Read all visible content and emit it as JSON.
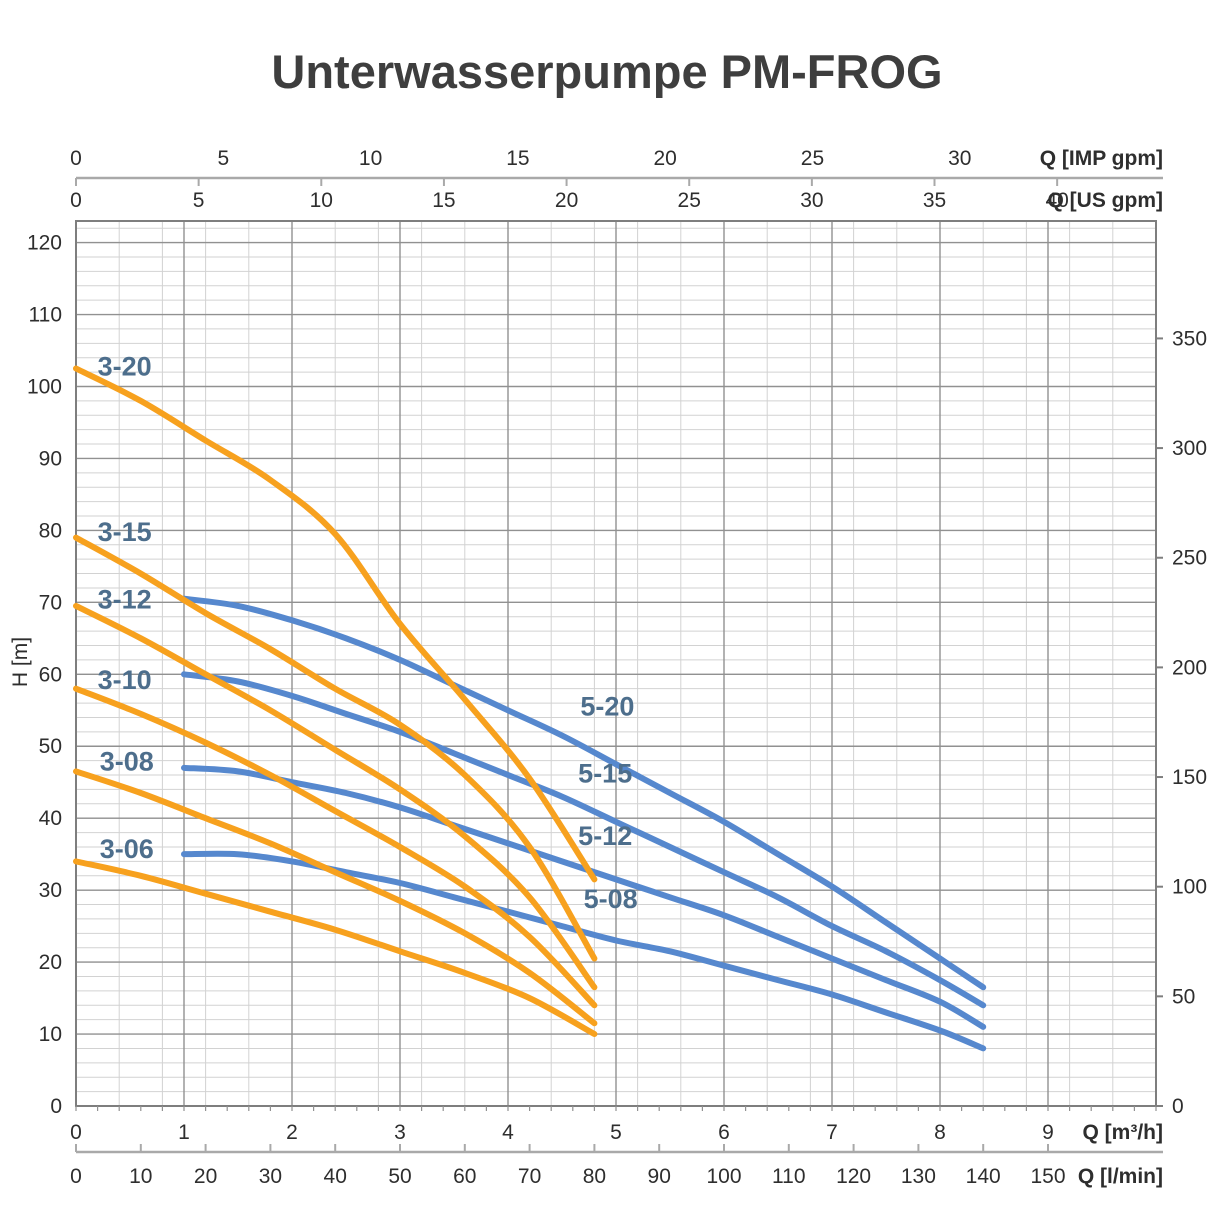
{
  "title": "Unterwasserpumpe PM-FROG",
  "colors": {
    "orange_series": "#F7A11E",
    "blue_series": "#5688CE",
    "curve_label": "#4D6E8C",
    "title_text": "#3E3E3E",
    "tick_text": "#2E2E2E",
    "axis_line": "#A9A9A9",
    "grid_minor": "#D2D2D2",
    "grid_major": "#919191",
    "plot_border": "#7E7E7E"
  },
  "chart_data": {
    "type": "line",
    "title": "Unterwasserpumpe PM-FROG",
    "grid": true,
    "legend": "none (inline curve labels)",
    "x_range_m3h": [
      0,
      10
    ],
    "y_range_m": [
      0,
      123
    ],
    "x_minor_step": 0.4,
    "x_major_step": 1,
    "y_minor_step": 2,
    "y_major_step": 10,
    "axes": {
      "top_imp": {
        "unit_label": "Q [IMP gpm]",
        "ticks": [
          0,
          5,
          10,
          15,
          20,
          25,
          30
        ],
        "unit_in_m3h": 0.27277
      },
      "top_us": {
        "unit_label": "Q [US gpm]",
        "ticks": [
          0,
          5,
          10,
          15,
          20,
          25,
          30,
          35,
          40
        ],
        "unit_in_m3h": 0.22712
      },
      "bottom_m3h": {
        "unit_label": "Q [m³/h]",
        "ticks": [
          0,
          1,
          2,
          3,
          4,
          5,
          6,
          7,
          8,
          9
        ]
      },
      "bottom_lmin": {
        "unit_label": "Q [l/min]",
        "ticks": [
          0,
          10,
          20,
          30,
          40,
          50,
          60,
          70,
          80,
          90,
          100,
          110,
          120,
          130,
          140,
          150
        ],
        "unit_in_m3h": 0.06
      },
      "left": {
        "unit_label": "H [m]",
        "ticks": [
          0,
          10,
          20,
          30,
          40,
          50,
          60,
          70,
          80,
          90,
          100,
          110,
          120
        ]
      },
      "right": {
        "unit_label": "",
        "ticks": [
          0,
          50,
          100,
          150,
          200,
          250,
          300,
          350
        ],
        "unit_in_m": 0.3048
      }
    },
    "series": [
      {
        "name": "5-20",
        "group": "blue",
        "points": [
          [
            1,
            70.5
          ],
          [
            1.5,
            69.5
          ],
          [
            2,
            67.5
          ],
          [
            2.5,
            65
          ],
          [
            3,
            62
          ],
          [
            3.5,
            58.5
          ],
          [
            4,
            55
          ],
          [
            4.5,
            51.5
          ],
          [
            5,
            47.5
          ],
          [
            5.5,
            43.5
          ],
          [
            6,
            39.5
          ],
          [
            6.5,
            35
          ],
          [
            7,
            30.5
          ],
          [
            7.5,
            25.5
          ],
          [
            8,
            20.5
          ],
          [
            8.4,
            16.5
          ]
        ],
        "label_pos": [
          4.92,
          55.5
        ]
      },
      {
        "name": "5-15",
        "group": "blue",
        "points": [
          [
            1,
            60
          ],
          [
            1.5,
            59
          ],
          [
            2,
            57
          ],
          [
            2.5,
            54.5
          ],
          [
            3,
            52
          ],
          [
            3.5,
            49
          ],
          [
            4,
            46
          ],
          [
            4.5,
            43
          ],
          [
            5,
            39.5
          ],
          [
            5.5,
            36
          ],
          [
            6,
            32.5
          ],
          [
            6.5,
            29
          ],
          [
            7,
            25
          ],
          [
            7.5,
            21.5
          ],
          [
            8,
            17.5
          ],
          [
            8.4,
            14
          ]
        ],
        "label_pos": [
          4.9,
          46.2
        ]
      },
      {
        "name": "5-12",
        "group": "blue",
        "points": [
          [
            1,
            47
          ],
          [
            1.5,
            46.5
          ],
          [
            2,
            45
          ],
          [
            2.5,
            43.5
          ],
          [
            3,
            41.5
          ],
          [
            3.5,
            39
          ],
          [
            4,
            36.5
          ],
          [
            4.5,
            34
          ],
          [
            5,
            31.5
          ],
          [
            5.5,
            29
          ],
          [
            6,
            26.5
          ],
          [
            6.5,
            23.5
          ],
          [
            7,
            20.5
          ],
          [
            7.5,
            17.5
          ],
          [
            8,
            14.5
          ],
          [
            8.4,
            11
          ]
        ],
        "label_pos": [
          4.9,
          37.5
        ]
      },
      {
        "name": "5-08",
        "group": "blue",
        "points": [
          [
            1,
            35
          ],
          [
            1.5,
            35
          ],
          [
            2,
            34
          ],
          [
            2.5,
            32.5
          ],
          [
            3,
            31
          ],
          [
            3.5,
            29
          ],
          [
            4,
            27
          ],
          [
            4.5,
            25
          ],
          [
            5,
            23
          ],
          [
            5.5,
            21.5
          ],
          [
            6,
            19.5
          ],
          [
            6.5,
            17.5
          ],
          [
            7,
            15.5
          ],
          [
            7.5,
            13
          ],
          [
            8,
            10.5
          ],
          [
            8.4,
            8
          ]
        ],
        "label_pos": [
          4.95,
          28.8
        ]
      },
      {
        "name": "3-20",
        "group": "orange",
        "points": [
          [
            0,
            102.5
          ],
          [
            0.6,
            98
          ],
          [
            1.2,
            92.5
          ],
          [
            1.8,
            87
          ],
          [
            2.4,
            79.5
          ],
          [
            3,
            67
          ],
          [
            3.6,
            56.5
          ],
          [
            4.2,
            45.5
          ],
          [
            4.8,
            31.5
          ]
        ],
        "label_pos": [
          0.45,
          102.8
        ]
      },
      {
        "name": "3-15",
        "group": "orange",
        "points": [
          [
            0,
            79
          ],
          [
            0.6,
            74
          ],
          [
            1.2,
            68.5
          ],
          [
            1.8,
            63.5
          ],
          [
            2.4,
            58
          ],
          [
            3,
            53
          ],
          [
            3.6,
            46
          ],
          [
            4.2,
            36
          ],
          [
            4.8,
            20.5
          ]
        ],
        "label_pos": [
          0.45,
          79.8
        ]
      },
      {
        "name": "3-12",
        "group": "orange",
        "points": [
          [
            0,
            69.5
          ],
          [
            0.6,
            65
          ],
          [
            1.2,
            60
          ],
          [
            1.8,
            55
          ],
          [
            2.4,
            49.5
          ],
          [
            3,
            44
          ],
          [
            3.6,
            37.5
          ],
          [
            4.2,
            29
          ],
          [
            4.8,
            16.5
          ]
        ],
        "label_pos": [
          0.45,
          70.4
        ]
      },
      {
        "name": "3-10",
        "group": "orange",
        "points": [
          [
            0,
            58
          ],
          [
            0.6,
            54.5
          ],
          [
            1.2,
            50.5
          ],
          [
            1.8,
            46
          ],
          [
            2.4,
            41
          ],
          [
            3,
            36
          ],
          [
            3.6,
            30.5
          ],
          [
            4.2,
            23.5
          ],
          [
            4.8,
            14
          ]
        ],
        "label_pos": [
          0.45,
          59.2
        ]
      },
      {
        "name": "3-08",
        "group": "orange",
        "points": [
          [
            0,
            46.5
          ],
          [
            0.6,
            43.5
          ],
          [
            1.2,
            40
          ],
          [
            1.8,
            36.5
          ],
          [
            2.4,
            32.5
          ],
          [
            3,
            28.5
          ],
          [
            3.6,
            24
          ],
          [
            4.2,
            18.5
          ],
          [
            4.8,
            11.5
          ]
        ],
        "label_pos": [
          0.47,
          47.9
        ]
      },
      {
        "name": "3-06",
        "group": "orange",
        "points": [
          [
            0,
            34
          ],
          [
            0.6,
            32
          ],
          [
            1.2,
            29.5
          ],
          [
            1.8,
            27
          ],
          [
            2.4,
            24.5
          ],
          [
            3,
            21.5
          ],
          [
            3.6,
            18.5
          ],
          [
            4.2,
            15
          ],
          [
            4.8,
            10
          ]
        ],
        "label_pos": [
          0.47,
          35.7
        ]
      }
    ]
  }
}
